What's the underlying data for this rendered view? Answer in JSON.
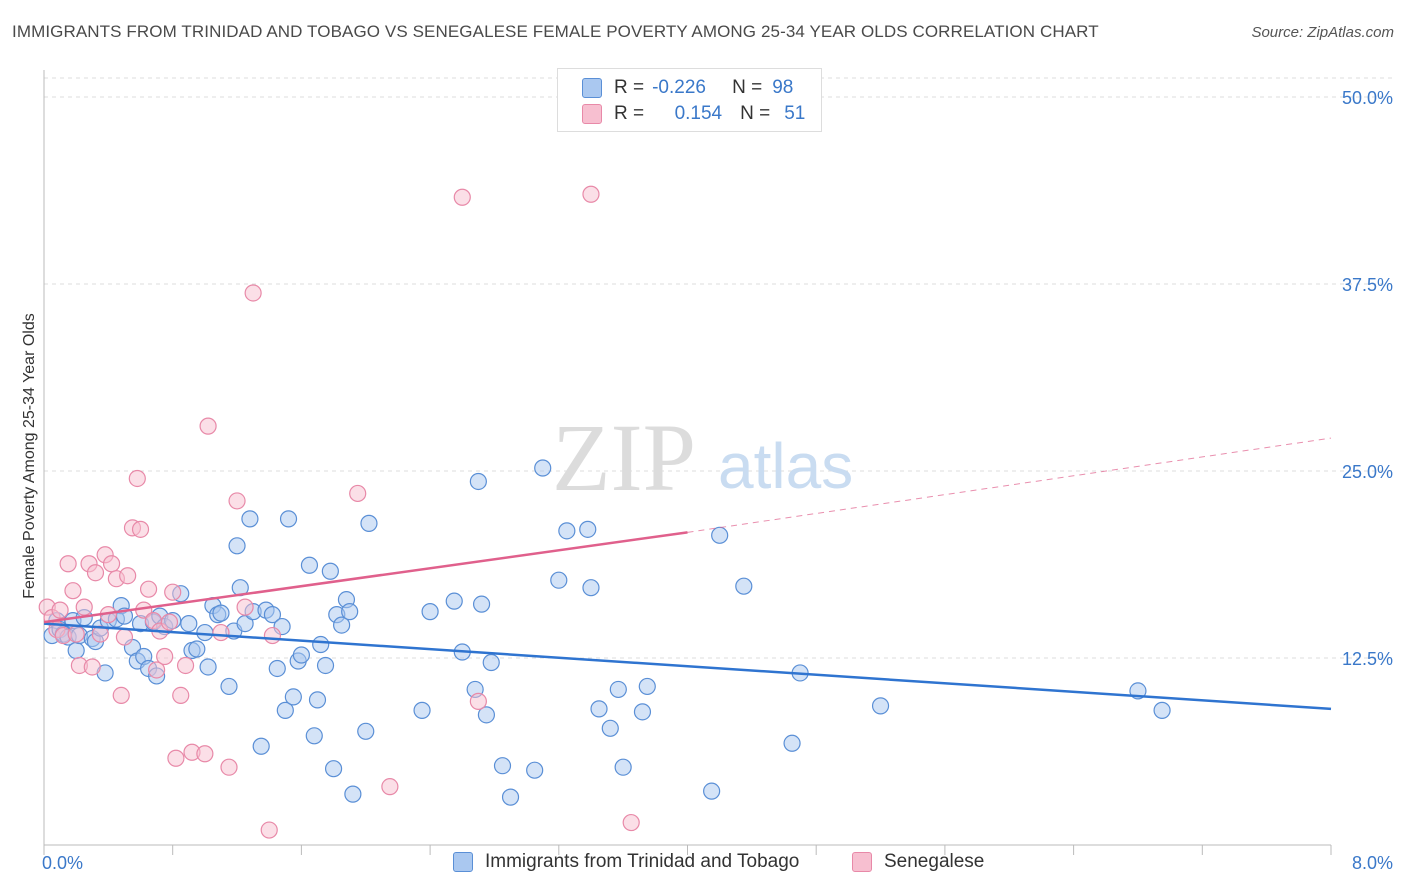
{
  "title": "IMMIGRANTS FROM TRINIDAD AND TOBAGO VS SENEGALESE FEMALE POVERTY AMONG 25-34 YEAR OLDS CORRELATION CHART",
  "source": "Source: ZipAtlas.com",
  "watermark": {
    "zip": "ZIP",
    "atlas": "atlas"
  },
  "legend": {
    "rows": [
      {
        "r_label": "R =",
        "r_value": "-0.226",
        "n_label": "N =",
        "n_value": "98"
      },
      {
        "r_label": "R =",
        "r_value": "0.154",
        "n_label": "N =",
        "n_value": "51"
      }
    ]
  },
  "colors": {
    "blue_fill": "#aac8f0",
    "blue_stroke": "#5a8fd6",
    "blue_line": "#2f74d0",
    "pink_fill": "#f7bfd0",
    "pink_stroke": "#e889a8",
    "pink_line": "#e0608c",
    "axis_text": "#3a78c9",
    "grid": "#dddddd"
  },
  "chart_data": {
    "type": "scatter",
    "xlabel": "",
    "ylabel": "Female Poverty Among 25-34 Year Olds",
    "xlim": [
      0.0,
      8.0
    ],
    "ylim": [
      0.0,
      50.0
    ],
    "x_tick_labels": [
      "0.0%",
      "8.0%"
    ],
    "y_ticks": [
      12.5,
      25.0,
      37.5,
      50.0
    ],
    "y_tick_labels": [
      "12.5%",
      "25.0%",
      "37.5%",
      "50.0%"
    ],
    "grid": true,
    "legend_position": "bottom",
    "series": [
      {
        "name": "Immigrants from Trinidad and Tobago",
        "color": "#5a8fd6",
        "trend": {
          "x": [
            0.0,
            8.0
          ],
          "y": [
            14.8,
            9.1
          ],
          "style": "solid"
        },
        "points": [
          [
            0.05,
            14.0
          ],
          [
            0.08,
            15.0
          ],
          [
            0.1,
            14.4
          ],
          [
            0.12,
            14.1
          ],
          [
            0.15,
            13.9
          ],
          [
            0.18,
            15.0
          ],
          [
            0.2,
            13.0
          ],
          [
            0.22,
            14.0
          ],
          [
            0.25,
            15.2
          ],
          [
            0.3,
            13.8
          ],
          [
            0.32,
            13.6
          ],
          [
            0.35,
            14.5
          ],
          [
            0.38,
            11.5
          ],
          [
            0.4,
            15.0
          ],
          [
            0.45,
            15.1
          ],
          [
            0.48,
            16.0
          ],
          [
            0.5,
            15.3
          ],
          [
            0.55,
            13.2
          ],
          [
            0.58,
            12.3
          ],
          [
            0.6,
            14.8
          ],
          [
            0.62,
            12.6
          ],
          [
            0.65,
            11.8
          ],
          [
            0.68,
            14.9
          ],
          [
            0.7,
            11.3
          ],
          [
            0.72,
            15.3
          ],
          [
            0.75,
            14.6
          ],
          [
            0.8,
            15.0
          ],
          [
            0.85,
            16.8
          ],
          [
            0.9,
            14.8
          ],
          [
            0.92,
            13.0
          ],
          [
            0.95,
            13.1
          ],
          [
            1.0,
            14.2
          ],
          [
            1.02,
            11.9
          ],
          [
            1.05,
            16.0
          ],
          [
            1.08,
            15.4
          ],
          [
            1.1,
            15.5
          ],
          [
            1.15,
            10.6
          ],
          [
            1.18,
            14.3
          ],
          [
            1.2,
            20.0
          ],
          [
            1.22,
            17.2
          ],
          [
            1.25,
            14.8
          ],
          [
            1.28,
            21.8
          ],
          [
            1.3,
            15.6
          ],
          [
            1.35,
            6.6
          ],
          [
            1.38,
            15.7
          ],
          [
            1.42,
            15.4
          ],
          [
            1.45,
            11.8
          ],
          [
            1.48,
            14.6
          ],
          [
            1.5,
            9.0
          ],
          [
            1.52,
            21.8
          ],
          [
            1.55,
            9.9
          ],
          [
            1.58,
            12.3
          ],
          [
            1.6,
            12.7
          ],
          [
            1.65,
            18.7
          ],
          [
            1.68,
            7.3
          ],
          [
            1.7,
            9.7
          ],
          [
            1.72,
            13.4
          ],
          [
            1.75,
            12.0
          ],
          [
            1.78,
            18.3
          ],
          [
            1.8,
            5.1
          ],
          [
            1.82,
            15.4
          ],
          [
            1.85,
            14.7
          ],
          [
            1.88,
            16.4
          ],
          [
            1.9,
            15.6
          ],
          [
            1.92,
            3.4
          ],
          [
            2.0,
            7.6
          ],
          [
            2.02,
            21.5
          ],
          [
            2.35,
            9.0
          ],
          [
            2.4,
            15.6
          ],
          [
            2.55,
            16.3
          ],
          [
            2.6,
            12.9
          ],
          [
            2.68,
            10.4
          ],
          [
            2.7,
            24.3
          ],
          [
            2.72,
            16.1
          ],
          [
            2.75,
            8.7
          ],
          [
            2.78,
            12.2
          ],
          [
            2.85,
            5.3
          ],
          [
            2.9,
            3.2
          ],
          [
            3.05,
            5.0
          ],
          [
            3.1,
            25.2
          ],
          [
            3.2,
            17.7
          ],
          [
            3.25,
            21.0
          ],
          [
            3.38,
            21.1
          ],
          [
            3.4,
            17.2
          ],
          [
            3.45,
            9.1
          ],
          [
            3.52,
            7.8
          ],
          [
            3.57,
            10.4
          ],
          [
            3.6,
            5.2
          ],
          [
            3.72,
            8.9
          ],
          [
            3.75,
            10.6
          ],
          [
            4.15,
            3.6
          ],
          [
            4.2,
            20.7
          ],
          [
            4.35,
            17.3
          ],
          [
            4.65,
            6.8
          ],
          [
            4.7,
            11.5
          ],
          [
            5.2,
            9.3
          ],
          [
            6.8,
            10.3
          ],
          [
            6.95,
            9.0
          ]
        ]
      },
      {
        "name": "Senegalese",
        "color": "#e889a8",
        "trend": {
          "x": [
            0.0,
            4.0
          ],
          "y": [
            14.9,
            20.9
          ],
          "style": "solid",
          "extension": {
            "x": [
              4.0,
              8.0
            ],
            "y": [
              20.9,
              27.2
            ],
            "style": "dashed"
          }
        },
        "points": [
          [
            0.02,
            15.9
          ],
          [
            0.05,
            15.2
          ],
          [
            0.08,
            14.4
          ],
          [
            0.1,
            15.7
          ],
          [
            0.12,
            14.0
          ],
          [
            0.15,
            18.8
          ],
          [
            0.18,
            17.0
          ],
          [
            0.2,
            14.1
          ],
          [
            0.22,
            12.0
          ],
          [
            0.25,
            15.9
          ],
          [
            0.28,
            18.8
          ],
          [
            0.3,
            11.9
          ],
          [
            0.32,
            18.2
          ],
          [
            0.35,
            14.1
          ],
          [
            0.38,
            19.4
          ],
          [
            0.4,
            15.4
          ],
          [
            0.42,
            18.8
          ],
          [
            0.45,
            17.8
          ],
          [
            0.48,
            10.0
          ],
          [
            0.5,
            13.9
          ],
          [
            0.52,
            18.0
          ],
          [
            0.55,
            21.2
          ],
          [
            0.58,
            24.5
          ],
          [
            0.6,
            21.1
          ],
          [
            0.62,
            15.7
          ],
          [
            0.65,
            17.1
          ],
          [
            0.68,
            15.0
          ],
          [
            0.7,
            11.7
          ],
          [
            0.72,
            14.3
          ],
          [
            0.75,
            12.6
          ],
          [
            0.78,
            14.9
          ],
          [
            0.8,
            16.9
          ],
          [
            0.82,
            5.8
          ],
          [
            0.85,
            10.0
          ],
          [
            0.88,
            12.0
          ],
          [
            0.92,
            6.2
          ],
          [
            1.0,
            6.1
          ],
          [
            1.02,
            28.0
          ],
          [
            1.1,
            14.2
          ],
          [
            1.15,
            5.2
          ],
          [
            1.2,
            23.0
          ],
          [
            1.25,
            15.9
          ],
          [
            1.3,
            36.9
          ],
          [
            1.4,
            1.0
          ],
          [
            1.42,
            14.0
          ],
          [
            1.95,
            23.5
          ],
          [
            2.15,
            3.9
          ],
          [
            2.6,
            43.3
          ],
          [
            2.7,
            9.6
          ],
          [
            3.4,
            43.5
          ],
          [
            3.65,
            1.5
          ]
        ]
      }
    ]
  },
  "bottom_legend": [
    "Immigrants from Trinidad and Tobago",
    "Senegalese"
  ]
}
